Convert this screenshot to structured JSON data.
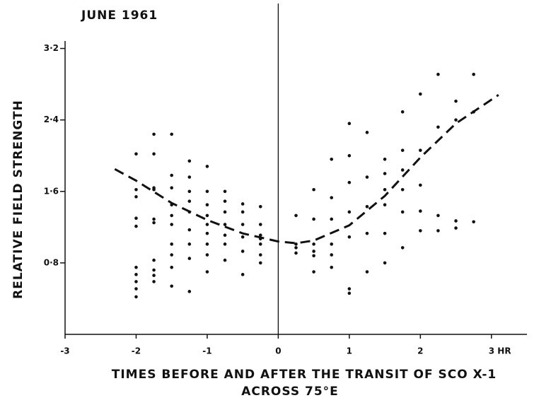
{
  "chart_data": {
    "type": "scatter",
    "title": "JUNE 1961",
    "ylabel": "RELATIVE FIELD STRENGTH",
    "xlabel": [
      "TIMES BEFORE AND AFTER THE TRANSIT OF SCO X-1",
      "ACROSS 75°E"
    ],
    "color": "#111111",
    "xlim": [
      -3,
      3.5
    ],
    "ylim": [
      0,
      3.6
    ],
    "xticks": [
      -3,
      -2,
      -1,
      0,
      1,
      2,
      {
        "value": 3,
        "label": "3 HR"
      }
    ],
    "yticks": [
      {
        "value": 0.8,
        "label": "0·8"
      },
      {
        "value": 1.6,
        "label": "1·6"
      },
      {
        "value": 2.4,
        "label": "2·4"
      },
      {
        "value": 3.2,
        "label": "3·2"
      }
    ],
    "series": [
      {
        "color": "#111111",
        "x": [
          -2,
          -2,
          -2,
          -2,
          -2,
          -2,
          -2,
          -2,
          -2,
          -2,
          -1.75,
          -1.75,
          -1.75,
          -1.75,
          -1.75,
          -1.75,
          -1.75,
          -1.75,
          -1.75,
          -1.75,
          -1.5,
          -1.5,
          -1.5,
          -1.5,
          -1.5,
          -1.5,
          -1.5,
          -1.5,
          -1.5,
          -1.5,
          -1.25,
          -1.25,
          -1.25,
          -1.25,
          -1.25,
          -1.25,
          -1.25,
          -1.25,
          -1.25,
          -1,
          -1,
          -1,
          -1,
          -1,
          -1,
          -1,
          -1,
          -1,
          -0.75,
          -0.75,
          -0.75,
          -0.75,
          -0.75,
          -0.75,
          -0.75,
          -0.5,
          -0.5,
          -0.5,
          -0.5,
          -0.5,
          -0.5,
          -0.25,
          -0.25,
          -0.25,
          -0.25,
          -0.25,
          -0.25,
          -0.25,
          0.25,
          0.25,
          0.25,
          0.25,
          0.5,
          0.5,
          0.5,
          0.5,
          0.5,
          0.5,
          0.75,
          0.75,
          0.75,
          0.75,
          0.75,
          0.75,
          1,
          1,
          1,
          1,
          1,
          1,
          1,
          1.25,
          1.25,
          1.25,
          1.25,
          1.25,
          1.5,
          1.5,
          1.5,
          1.5,
          1.5,
          1.5,
          1.75,
          1.75,
          1.75,
          1.75,
          1.75,
          1.75,
          2,
          2,
          2,
          2,
          2,
          2.25,
          2.25,
          2.25,
          2.25,
          2.5,
          2.5,
          2.5,
          2.5,
          2.75,
          2.75,
          2.75
        ],
        "values": [
          2.02,
          1.62,
          1.54,
          1.3,
          1.21,
          0.75,
          0.67,
          0.59,
          0.51,
          0.42,
          2.24,
          2.02,
          1.64,
          1.62,
          1.29,
          1.25,
          0.83,
          0.72,
          0.66,
          0.59,
          2.24,
          1.78,
          1.64,
          1.45,
          1.33,
          1.23,
          1.01,
          0.89,
          0.75,
          0.54,
          1.94,
          1.76,
          1.6,
          1.49,
          1.37,
          1.17,
          1.01,
          0.85,
          0.48,
          1.88,
          1.6,
          1.45,
          1.33,
          1.23,
          1.13,
          1.01,
          0.89,
          0.7,
          1.6,
          1.49,
          1.37,
          1.23,
          1.11,
          1.01,
          0.83,
          1.46,
          1.37,
          1.23,
          1.09,
          0.93,
          0.67,
          1.43,
          1.23,
          1.11,
          1.07,
          1.01,
          0.89,
          0.8,
          1.33,
          1.01,
          0.97,
          0.91,
          1.62,
          1.29,
          1.01,
          0.93,
          0.88,
          0.7,
          1.96,
          1.53,
          1.29,
          1.01,
          0.89,
          0.75,
          2.36,
          2.0,
          1.7,
          1.37,
          1.09,
          0.51,
          0.46,
          2.26,
          1.76,
          1.43,
          1.13,
          0.7,
          1.96,
          1.8,
          1.62,
          1.45,
          1.13,
          0.8,
          2.49,
          2.06,
          1.84,
          1.62,
          1.37,
          0.97,
          2.69,
          2.06,
          1.67,
          1.38,
          1.16,
          2.91,
          2.32,
          1.33,
          1.16,
          2.61,
          2.4,
          1.27,
          1.19,
          2.91,
          2.49,
          1.26
        ]
      }
    ],
    "trend": {
      "x": [
        -2.3,
        -2,
        -1.5,
        -1,
        -0.5,
        0,
        0.25,
        0.5,
        1,
        1.5,
        2,
        2.5,
        3.1
      ],
      "values": [
        1.85,
        1.72,
        1.47,
        1.28,
        1.13,
        1.04,
        1.02,
        1.05,
        1.22,
        1.55,
        1.98,
        2.36,
        2.68
      ]
    }
  }
}
